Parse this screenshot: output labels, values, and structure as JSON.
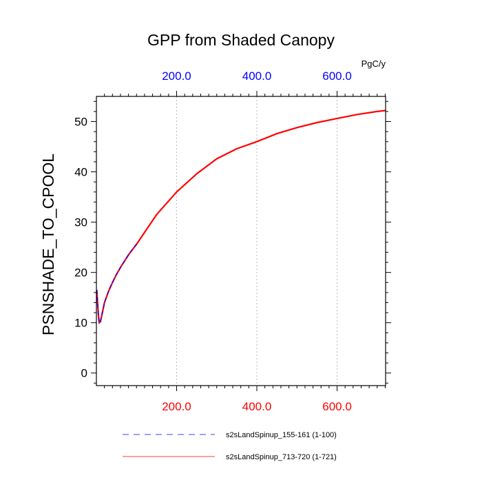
{
  "chart_data": {
    "type": "line",
    "title": "GPP from Shaded Canopy",
    "ylabel": "PSNSHADE_TO_CPOOL",
    "top_axis_unit": "PgC/y",
    "xlim": [
      0,
      721
    ],
    "ylim": [
      -2.5,
      55
    ],
    "grid": "vertical dotted",
    "x_ticks": [
      200,
      400,
      600
    ],
    "x_tick_labels_bottom": [
      "200.0",
      "400.0",
      "600.0"
    ],
    "x_tick_labels_top": [
      "200.0",
      "400.0",
      "600.0"
    ],
    "bottom_tick_color": "#ff0000",
    "top_tick_color": "#0000ff",
    "y_ticks": [
      0,
      10,
      20,
      30,
      40,
      50
    ],
    "y_tick_labels": [
      "0",
      "10",
      "20",
      "30",
      "40",
      "50"
    ],
    "legend_placement": "bottom",
    "series": [
      {
        "name": "s2sLandSpinup_155-161 (1-100)",
        "color": "#0000ff",
        "dash": "dashed",
        "x": [
          1,
          3,
          5,
          7,
          10,
          15,
          20,
          30,
          40,
          50,
          60,
          70,
          80,
          90,
          100
        ],
        "values": [
          16.5,
          14.0,
          11.5,
          10.0,
          10.2,
          12.0,
          14.0,
          16.2,
          18.0,
          19.6,
          21.0,
          22.3,
          23.5,
          24.6,
          25.6
        ]
      },
      {
        "name": "s2sLandSpinup_713-720 (1-721)",
        "color": "#ff0000",
        "dash": "solid",
        "x": [
          1,
          3,
          5,
          7,
          10,
          15,
          20,
          30,
          40,
          50,
          60,
          80,
          100,
          150,
          200,
          250,
          300,
          350,
          400,
          450,
          500,
          550,
          600,
          650,
          700,
          721
        ],
        "values": [
          16.5,
          14.0,
          11.5,
          10.0,
          10.2,
          12.0,
          14.0,
          16.2,
          18.0,
          19.6,
          21.0,
          23.5,
          25.6,
          31.5,
          36.0,
          39.6,
          42.6,
          44.6,
          46.0,
          47.6,
          48.8,
          49.8,
          50.6,
          51.4,
          52.0,
          52.2
        ]
      }
    ]
  }
}
